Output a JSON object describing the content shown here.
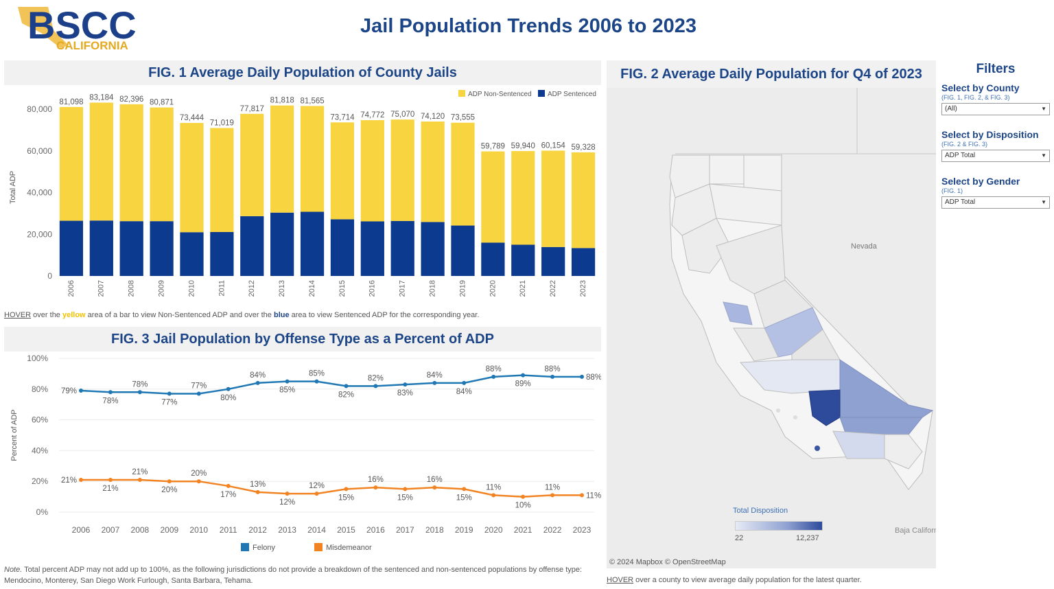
{
  "logo": {
    "main": "BSCC",
    "sub": "CALIFORNIA"
  },
  "page_title": "Jail Population Trends 2006 to 2023",
  "fig1": {
    "title": "FIG. 1 Average Daily Population of County Jails",
    "hover_note": {
      "p1": "HOVER",
      "p2": " over the ",
      "p3": "yellow",
      "p4": " area of a bar to view Non-Sentenced ADP and over the ",
      "p5": "blue",
      "p6": " area to view Sentenced ADP for the corresponding year."
    }
  },
  "fig2": {
    "title": "FIG. 2 Average Daily Population for Q4 of 2023",
    "nevada_label": "Nevada",
    "baja_label": "Baja California",
    "legend_title": "Total Disposition",
    "legend_min": "22",
    "legend_max": "12,237",
    "credit": "© 2024 Mapbox © OpenStreetMap",
    "hover_note": {
      "p1": "HOVER",
      "p2": " over a county to view average daily population for the latest quarter."
    },
    "colors": {
      "low": "#e6eaf5",
      "mid": "#8fa1d1",
      "high": "#2d4a9b"
    }
  },
  "fig3": {
    "title": "FIG. 3 Jail Population by Offense Type as a Percent of ADP"
  },
  "footnote": {
    "note": "Note.",
    "text": " Total percent ADP may not add up to 100%, as the following jurisdictions do not provide a breakdown of the sentenced and non-sentenced populations by offense type: Mendocino, Monterey, San Diego Work Furlough, Santa Barbara, Tehama."
  },
  "filters": {
    "title": "Filters",
    "county": {
      "label": "Select by County",
      "sub": "(FIG. 1, FIG. 2, & FIG. 3)",
      "value": "(All)"
    },
    "disposition": {
      "label": "Select by Disposition",
      "sub": "(FIG. 2 & FIG. 3)",
      "value": "ADP Total"
    },
    "gender": {
      "label": "Select by Gender",
      "sub": "(FIG. 1)",
      "value": "ADP Total"
    }
  },
  "chart_data": [
    {
      "type": "bar",
      "stacked": true,
      "categories": [
        "2006",
        "2007",
        "2008",
        "2009",
        "2010",
        "2011",
        "2012",
        "2013",
        "2014",
        "2015",
        "2016",
        "2017",
        "2018",
        "2019",
        "2020",
        "2021",
        "2022",
        "2023"
      ],
      "series": [
        {
          "name": "ADP Sentenced",
          "color": "#0b3a8e",
          "values": [
            26500,
            26600,
            26300,
            26300,
            21000,
            21100,
            28700,
            30400,
            30800,
            27200,
            26200,
            26400,
            25900,
            24200,
            16000,
            15000,
            13900,
            13400
          ]
        },
        {
          "name": "ADP Non-Sentenced",
          "color": "#f9d441",
          "values": [
            54598,
            56584,
            56096,
            54571,
            52444,
            49919,
            49117,
            51418,
            50765,
            46514,
            48572,
            48670,
            48220,
            49355,
            43789,
            44940,
            46254,
            45928
          ]
        }
      ],
      "totals": [
        81098,
        83184,
        82396,
        80871,
        73444,
        71019,
        77817,
        81818,
        81565,
        73714,
        74772,
        75070,
        74120,
        73555,
        59789,
        59940,
        60154,
        59328
      ],
      "total_labels": [
        "81,098",
        "83,184",
        "82,396",
        "80,871",
        "73,444",
        "71,019",
        "77,817",
        "81,818",
        "81,565",
        "73,714",
        "74,772",
        "75,070",
        "74,120",
        "73,555",
        "59,789",
        "59,940",
        "60,154",
        "59,328"
      ],
      "ylabel": "Total ADP",
      "ylim": [
        0,
        85000
      ],
      "yticks": [
        "0",
        "20,000",
        "40,000",
        "60,000",
        "80,000"
      ],
      "ytick_values": [
        0,
        20000,
        40000,
        60000,
        80000
      ],
      "legend_position": "top-right",
      "grid": false
    },
    {
      "type": "line",
      "x": [
        "2006",
        "2007",
        "2008",
        "2009",
        "2010",
        "2011",
        "2012",
        "2013",
        "2014",
        "2015",
        "2016",
        "2017",
        "2018",
        "2019",
        "2020",
        "2021",
        "2022",
        "2023"
      ],
      "series": [
        {
          "name": "Felony",
          "color": "#1f77b4",
          "values": [
            79,
            78,
            78,
            77,
            77,
            80,
            84,
            85,
            85,
            82,
            82,
            83,
            84,
            84,
            88,
            89,
            88,
            88
          ],
          "labels": [
            "79%",
            "78%",
            "78%",
            "77%",
            "77%",
            "80%",
            "84%",
            "85%",
            "85%",
            "82%",
            "82%",
            "83%",
            "84%",
            "84%",
            "88%",
            "89%",
            "88%",
            "88%"
          ]
        },
        {
          "name": "Misdemeanor",
          "color": "#f28322",
          "values": [
            21,
            21,
            21,
            20,
            20,
            17,
            13,
            12,
            12,
            15,
            16,
            15,
            16,
            15,
            11,
            10,
            11,
            11
          ],
          "labels": [
            "21%",
            "21%",
            "21%",
            "20%",
            "20%",
            "17%",
            "13%",
            "12%",
            "12%",
            "15%",
            "16%",
            "15%",
            "16%",
            "15%",
            "11%",
            "10%",
            "11%",
            "11%"
          ]
        }
      ],
      "ylabel": "Percent of ADP",
      "ylim": [
        0,
        100
      ],
      "yticks": [
        "0%",
        "20%",
        "40%",
        "60%",
        "80%",
        "100%"
      ],
      "ytick_values": [
        0,
        20,
        40,
        60,
        80,
        100
      ],
      "legend_position": "bottom",
      "grid": true
    }
  ]
}
